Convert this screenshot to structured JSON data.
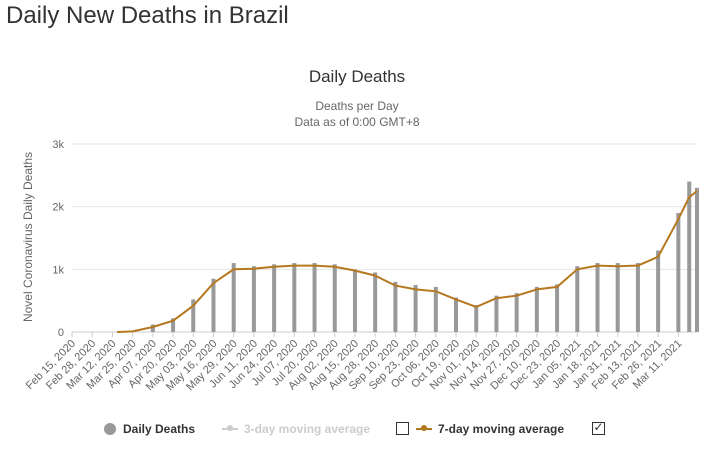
{
  "page": {
    "heading": "Daily New Deaths in Brazil"
  },
  "colors": {
    "bars": "#999999",
    "ma3": "#cccccc",
    "ma7": "#b5781f",
    "axis_text": "#666666",
    "title_text": "#333333",
    "grid": "#e6e6e6"
  },
  "chart_data": {
    "type": "bar",
    "title": "Daily Deaths",
    "subtitle_lines": [
      "Deaths per Day",
      "Data as of 0:00 GMT+8"
    ],
    "ylabel": "Novel Coronavirus Daily Deaths",
    "xlabel": "",
    "ylim": [
      0,
      3000
    ],
    "yticks": [
      0,
      1000,
      2000,
      3000
    ],
    "ytick_labels": [
      "0",
      "1k",
      "2k",
      "3k"
    ],
    "grid": true,
    "x_start_date": "2020-02-15",
    "x_end_date": "2021-03-23",
    "xtick_labels": [
      "Feb 15, 2020",
      "Feb 28, 2020",
      "Mar 12, 2020",
      "Mar 25, 2020",
      "Apr 07, 2020",
      "Apr 20, 2020",
      "May 03, 2020",
      "May 16, 2020",
      "May 29, 2020",
      "Jun 11, 2020",
      "Jun 24, 2020",
      "Jul 07, 2020",
      "Jul 20, 2020",
      "Aug 02, 2020",
      "Aug 15, 2020",
      "Aug 28, 2020",
      "Sep 10, 2020",
      "Sep 23, 2020",
      "Oct 06, 2020",
      "Oct 19, 2020",
      "Nov 01, 2020",
      "Nov 14, 2020",
      "Nov 27, 2020",
      "Dec 10, 2020",
      "Dec 23, 2020",
      "Jan 05, 2021",
      "Jan 18, 2021",
      "Jan 31, 2021",
      "Feb 13, 2021",
      "Feb 26, 2021",
      "Mar 11, 2021"
    ],
    "series": [
      {
        "name": "Daily Deaths",
        "kind": "bar",
        "visible": true,
        "x": [
          "2020-03-15",
          "2020-03-25",
          "2020-04-07",
          "2020-04-20",
          "2020-05-03",
          "2020-05-16",
          "2020-05-29",
          "2020-06-11",
          "2020-06-24",
          "2020-07-07",
          "2020-07-20",
          "2020-08-02",
          "2020-08-15",
          "2020-08-28",
          "2020-09-10",
          "2020-09-23",
          "2020-10-06",
          "2020-10-19",
          "2020-11-01",
          "2020-11-14",
          "2020-11-27",
          "2020-12-10",
          "2020-12-23",
          "2021-01-05",
          "2021-01-18",
          "2021-01-31",
          "2021-02-13",
          "2021-02-26",
          "2021-03-11",
          "2021-03-18",
          "2021-03-23"
        ],
        "y": [
          0,
          20,
          120,
          220,
          520,
          850,
          1100,
          1050,
          1080,
          1100,
          1100,
          1080,
          1000,
          950,
          800,
          750,
          720,
          550,
          430,
          580,
          620,
          720,
          760,
          1050,
          1100,
          1100,
          1100,
          1300,
          1900,
          2400,
          2300
        ]
      },
      {
        "name": "3-day moving average",
        "kind": "line",
        "visible": false,
        "y": []
      },
      {
        "name": "7-day moving average",
        "kind": "line",
        "visible": true,
        "x": [
          "2020-03-15",
          "2020-03-25",
          "2020-04-07",
          "2020-04-20",
          "2020-05-03",
          "2020-05-16",
          "2020-05-29",
          "2020-06-11",
          "2020-06-24",
          "2020-07-07",
          "2020-07-20",
          "2020-08-02",
          "2020-08-15",
          "2020-08-28",
          "2020-09-10",
          "2020-09-23",
          "2020-10-06",
          "2020-10-19",
          "2020-11-01",
          "2020-11-14",
          "2020-11-27",
          "2020-12-10",
          "2020-12-23",
          "2021-01-05",
          "2021-01-18",
          "2021-01-31",
          "2021-02-13",
          "2021-02-26",
          "2021-03-11",
          "2021-03-18",
          "2021-03-23"
        ],
        "y": [
          0,
          10,
          80,
          180,
          420,
          780,
          1000,
          1010,
          1040,
          1060,
          1060,
          1040,
          980,
          900,
          740,
          680,
          650,
          520,
          400,
          540,
          580,
          680,
          720,
          1000,
          1060,
          1050,
          1060,
          1200,
          1800,
          2150,
          2250
        ]
      }
    ]
  },
  "legend": {
    "items": [
      {
        "label": "Daily Deaths",
        "checkbox": false,
        "checked": false
      },
      {
        "label": "3-day moving average",
        "checkbox": true,
        "checked": false
      },
      {
        "label": "7-day moving average",
        "checkbox": true,
        "checked": true
      }
    ],
    "check_mark": "✓"
  }
}
